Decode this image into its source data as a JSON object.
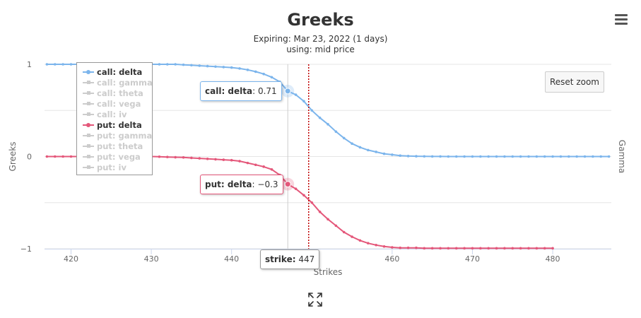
{
  "title": "Greeks",
  "subtitle_line1": "Expiring: Mar 23, 2022 (1 days)",
  "subtitle_line2": "using: mid price",
  "reset_zoom_label": "Reset zoom",
  "menu_icon": "hamburger-menu-icon",
  "fullscreen_icon": "expand-arrows-icon",
  "legend": [
    {
      "label": "call: delta",
      "visible": true,
      "color": "#7cb5ec"
    },
    {
      "label": "call: gamma",
      "visible": false,
      "color": "#cccccc"
    },
    {
      "label": "call: theta",
      "visible": false,
      "color": "#cccccc"
    },
    {
      "label": "call: vega",
      "visible": false,
      "color": "#cccccc"
    },
    {
      "label": "call: iv",
      "visible": false,
      "color": "#cccccc"
    },
    {
      "label": "put: delta",
      "visible": true,
      "color": "#e4577a"
    },
    {
      "label": "put: gamma",
      "visible": false,
      "color": "#cccccc"
    },
    {
      "label": "put: theta",
      "visible": false,
      "color": "#cccccc"
    },
    {
      "label": "put: vega",
      "visible": false,
      "color": "#cccccc"
    },
    {
      "label": "put: iv",
      "visible": false,
      "color": "#cccccc"
    }
  ],
  "tooltips": {
    "call_series": "call: delta",
    "call_value": ": 0.71",
    "put_series": "put: delta",
    "put_value": ": −0.3",
    "strike_label": "strike:",
    "strike_value": " 447"
  },
  "chart_data": {
    "type": "line",
    "xlabel": "Strikes",
    "ylabel": "Greeks",
    "y2label": "Gamma",
    "xlim": [
      416.7,
      487.3
    ],
    "ylim": [
      -1,
      1
    ],
    "xticks": [
      420,
      430,
      440,
      450,
      460,
      470,
      480
    ],
    "xtick_labels": [
      "420",
      "430",
      "440",
      "450",
      "460",
      "470",
      "480"
    ],
    "yticks": [
      1,
      0,
      -1
    ],
    "ytick_labels": [
      "1",
      "0",
      "−1"
    ],
    "crosshair_x": 447,
    "underlying_price_line": 449.6,
    "series": [
      {
        "name": "call: delta",
        "color": "#7cb5ec",
        "x": [
          417,
          418,
          419,
          420,
          421,
          422,
          423,
          424,
          425,
          426,
          427,
          428,
          429,
          430,
          431,
          432,
          433,
          434,
          435,
          436,
          437,
          438,
          439,
          440,
          441,
          442,
          443,
          444,
          445,
          446,
          447,
          448,
          449,
          450,
          451,
          452,
          453,
          454,
          455,
          456,
          457,
          458,
          459,
          460,
          461,
          462,
          463,
          464,
          465,
          466,
          467,
          468,
          469,
          470,
          471,
          472,
          473,
          474,
          475,
          476,
          477,
          478,
          479,
          480,
          481,
          482,
          483,
          484,
          485,
          486,
          487
        ],
        "values": [
          1,
          1,
          1,
          1,
          1,
          1,
          1,
          1,
          1,
          1,
          1,
          1,
          1,
          1,
          1,
          1,
          1,
          0.995,
          0.99,
          0.985,
          0.98,
          0.975,
          0.97,
          0.965,
          0.955,
          0.94,
          0.92,
          0.895,
          0.86,
          0.81,
          0.71,
          0.67,
          0.6,
          0.5,
          0.42,
          0.35,
          0.27,
          0.2,
          0.14,
          0.1,
          0.07,
          0.05,
          0.03,
          0.02,
          0.01,
          0.005,
          0.003,
          0.002,
          0.001,
          0.001,
          0,
          0,
          0,
          0,
          0,
          0,
          0,
          0,
          0,
          0,
          0,
          0,
          0,
          0,
          0,
          0,
          0,
          0,
          0,
          0,
          0
        ]
      },
      {
        "name": "put: delta",
        "color": "#e4577a",
        "x": [
          417,
          418,
          419,
          420,
          421,
          422,
          423,
          424,
          425,
          426,
          427,
          428,
          429,
          430,
          431,
          432,
          433,
          434,
          435,
          436,
          437,
          438,
          439,
          440,
          441,
          442,
          443,
          444,
          445,
          446,
          447,
          448,
          449,
          450,
          451,
          452,
          453,
          454,
          455,
          456,
          457,
          458,
          459,
          460,
          461,
          462,
          463,
          464,
          465,
          466,
          467,
          468,
          469,
          470,
          471,
          472,
          473,
          474,
          475,
          476,
          477,
          478,
          479,
          480
        ],
        "values": [
          0,
          0,
          0,
          0,
          0,
          0,
          0,
          0,
          0,
          0,
          0,
          0,
          0,
          0,
          -0.002,
          -0.005,
          -0.008,
          -0.01,
          -0.015,
          -0.02,
          -0.025,
          -0.03,
          -0.035,
          -0.04,
          -0.05,
          -0.07,
          -0.09,
          -0.11,
          -0.14,
          -0.2,
          -0.3,
          -0.35,
          -0.42,
          -0.5,
          -0.6,
          -0.68,
          -0.75,
          -0.82,
          -0.87,
          -0.91,
          -0.94,
          -0.96,
          -0.975,
          -0.985,
          -0.99,
          -0.99,
          -0.99,
          -0.995,
          -0.995,
          -0.995,
          -0.995,
          -0.995,
          -0.995,
          -0.995,
          -0.995,
          -0.995,
          -0.995,
          -0.995,
          -0.995,
          -0.995,
          -0.995,
          -0.995,
          -0.995,
          -0.995
        ]
      }
    ]
  }
}
